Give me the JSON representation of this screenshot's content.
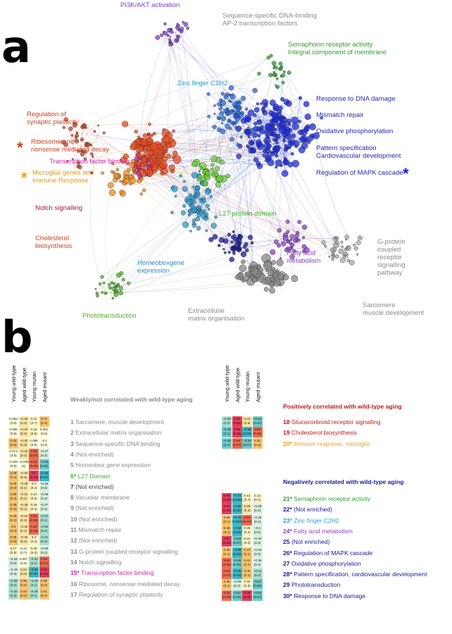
{
  "panel_a_letter": "a",
  "panel_b_letter": "b",
  "network_labels": [
    {
      "id": "pi3k",
      "text": "PI3K/AKT activation",
      "color": "#7b3fc4"
    },
    {
      "id": "ap2",
      "text": "Sequence-specific DNA-binding\nAP-2 transcription factors",
      "color": "#8a8a8a"
    },
    {
      "id": "sema",
      "text": "Semaphorin receptor activity\nIntegral component of membrane",
      "color": "#2e9d2e"
    },
    {
      "id": "znf",
      "text": "Zinc finger C2H2",
      "color": "#2a9ad0"
    },
    {
      "id": "dnadmg",
      "text": "Response to DNA damage",
      "color": "#2626b8"
    },
    {
      "id": "mismatch",
      "text": "Mismatch repair",
      "color": "#2626b8"
    },
    {
      "id": "oxphos",
      "text": "Oxidative phosphorylation",
      "color": "#2626b8"
    },
    {
      "id": "pattern",
      "text": "Pattern specification\nCardiovascular development",
      "color": "#2626b8"
    },
    {
      "id": "mapk",
      "text": "Regulation of MAPK cascade",
      "color": "#2626b8"
    },
    {
      "id": "synplast",
      "text": "Regulation of\nsynaptic plasticity",
      "color": "#c8401e"
    },
    {
      "id": "ribo",
      "text": "Ribosome and\nnonsense mediated decay",
      "color": "#c8401e"
    },
    {
      "id": "tfb",
      "text": "Transcription factor binding",
      "color": "#cc22aa"
    },
    {
      "id": "microglia",
      "text": "Microglial genes and\nImmune Response",
      "color": "#e09a10"
    },
    {
      "id": "notch",
      "text": "Notch signalling",
      "color": "#a0163a"
    },
    {
      "id": "l27",
      "text": "L27 protein domain",
      "color": "#3caf2a"
    },
    {
      "id": "chol",
      "text": "Cholesterol\nbiosynthesis",
      "color": "#c8401e"
    },
    {
      "id": "homeo",
      "text": "Homeoboxgene\nexpression",
      "color": "#2a88c8"
    },
    {
      "id": "fatty",
      "text": "Fatty acid\nmetabolism",
      "color": "#8a3fc4"
    },
    {
      "id": "gprot",
      "text": "G-protein\ncoupled\nreceptor\nsignalling\npathway",
      "color": "#8a8a8a"
    },
    {
      "id": "photo",
      "text": "Phototransduction",
      "color": "#4caf2a"
    },
    {
      "id": "ecm",
      "text": "Extracellular\nmatrix organisation",
      "color": "#8a8a8a"
    },
    {
      "id": "sarc",
      "text": "Sarcomere\nmuscle development",
      "color": "#8a8a8a"
    }
  ],
  "stars": [
    {
      "id": "red",
      "char": "*",
      "color": "#d2401e"
    },
    {
      "id": "orange",
      "char": "*",
      "color": "#e8a21a"
    },
    {
      "id": "blue",
      "char": "*",
      "color": "#1a1ad0"
    },
    {
      "id": "grey",
      "char": "*",
      "color": "#a0a0a0"
    }
  ],
  "column_headers": [
    "Young wild-type",
    "Aged wild-type",
    "Young mutan",
    "Aged mutant"
  ],
  "weak_section_title": "Weakly/not correlated with wild-type aging",
  "pos_section_title": "Positively correlated with wild-type aging",
  "neg_section_title": "Negatively correlated with wild-type aging",
  "weak_modules": [
    {
      "num": "1",
      "label": "Sarcomere, muscle development",
      "color": "#8a8a8a",
      "cells": [
        [
          "0.083",
          "(0.8)",
          "#ffffe0"
        ],
        [
          "−0.39",
          "(0.2)",
          "#fde6a4"
        ],
        [
          "0.12",
          "(0.7)",
          "#fff6c8"
        ],
        [
          "0.72",
          "(0.4)",
          "#f8c470"
        ]
      ]
    },
    {
      "num": "2",
      "label": "Extracellular matrix organisation",
      "color": "#8a8a8a",
      "cells": [
        [
          "0.065",
          "(0.8)",
          "#ffffe0"
        ],
        [
          "−0.34",
          "(0.3)",
          "#fde6a4"
        ],
        [
          "0.18",
          "(0.6)",
          "#fff6c8"
        ],
        [
          "0.061",
          "(0.9)",
          "#ffffe0"
        ]
      ]
    },
    {
      "num": "3",
      "label": "Sequence-specific DNA binding",
      "color": "#8a8a8a",
      "cells": [
        [
          "0.34",
          "(0.3)",
          "#f8c470"
        ],
        [
          "−0.32",
          "(0.3)",
          "#fde6a4"
        ],
        [
          "0.085",
          "(0.8)",
          "#ffffe0"
        ],
        [
          "−0.1",
          "(0.8)",
          "#ffffe0"
        ]
      ]
    },
    {
      "num": "4",
      "label": "(Not enriched)",
      "color": "#8a8a8a",
      "cells": [
        [
          "0.073",
          "(0.8)",
          "#ffffe0"
        ],
        [
          "−0.34",
          "(0.3)",
          "#fde6a4"
        ],
        [
          "0.59",
          "(0.07)",
          "#ef6a50"
        ],
        [
          "−0.27",
          "(0.4)",
          "#d8f0e0"
        ]
      ]
    },
    {
      "num": "5",
      "label": "Homeobox gene expression",
      "color": "#8a8a8a",
      "cells": [
        [
          "0.029",
          "(0.9)",
          "#ffffe0"
        ],
        [
          "−0.0089",
          "(1)",
          "#ffffe0"
        ],
        [
          "0.53",
          "(0.09)",
          "#ef6a50"
        ],
        [
          "−0.53",
          "(0.08)",
          "#6fcac8"
        ]
      ]
    },
    {
      "num": "6*",
      "label": "L27 Domain",
      "color": "#3caf2a",
      "cells": [
        [
          "0.29",
          "(0.4)",
          "#f8c470"
        ],
        [
          "−0.23",
          "(0.5)",
          "#fde6a4"
        ],
        [
          "0.6",
          "(0.04)",
          "#e83c5c"
        ],
        [
          "−0.66",
          "(0.02)",
          "#3ab8c8"
        ]
      ]
    },
    {
      "num": "7",
      "label": "(Not enriched)",
      "color": "#444444",
      "cells": [
        [
          "0.26",
          "(0.4)",
          "#f8c470"
        ],
        [
          "−0.48",
          "(0.1)",
          "#fde6a4"
        ],
        [
          "0.4",
          "(0.2)",
          "#fff6c8"
        ],
        [
          "−0.16",
          "(0.6)",
          "#d8f0e0"
        ]
      ]
    },
    {
      "num": "8",
      "label": "Vacuolar membrane",
      "color": "#8a8a8a",
      "cells": [
        [
          "0.35",
          "(0.3)",
          "#f8c470"
        ],
        [
          "−0.41",
          "(0.2)",
          "#fde6a4"
        ],
        [
          "0.21",
          "(0.5)",
          "#fff6c8"
        ],
        [
          "−0.25",
          "(0.4)",
          "#d8f0e0"
        ]
      ]
    },
    {
      "num": "9",
      "label": "(Not enriched)",
      "color": "#8a8a8a",
      "cells": [
        [
          "0.36",
          "(0.3)",
          "#f8c470"
        ],
        [
          "−0.48",
          "(0.1)",
          "#fde6a4"
        ],
        [
          "0.26",
          "(0.4)",
          "#fff6c8"
        ],
        [
          "−0.27",
          "(0.4)",
          "#d8f0e0"
        ]
      ]
    },
    {
      "num": "10",
      "label": "(Not enriched)",
      "color": "#8a8a8a",
      "cells": [
        [
          "0.29",
          "(0.4)",
          "#f8c470"
        ],
        [
          "−0.34",
          "(0.3)",
          "#fde6a4"
        ],
        [
          "0.53",
          "(0.08)",
          "#ef6a50"
        ],
        [
          "−0.47",
          "(0.1)",
          "#a8e0d0"
        ]
      ]
    },
    {
      "num": "11",
      "label": "Mismatch repair",
      "color": "#8a8a8a",
      "cells": [
        [
          "0.3",
          "(0.3)",
          "#f8c470"
        ],
        [
          "−0.45",
          "(0.1)",
          "#fde6a4"
        ],
        [
          "0.52",
          "(0.09)",
          "#ef6a50"
        ],
        [
          "−0.42",
          "(0.2)",
          "#a8e0d0"
        ]
      ]
    },
    {
      "num": "12",
      "label": "(Not enriched)",
      "color": "#8a8a8a",
      "cells": [
        [
          "0.35",
          "(0.3)",
          "#f8c470"
        ],
        [
          "−0.48",
          "(0.2)",
          "#fde6a4"
        ],
        [
          "0.4",
          "(0.2)",
          "#fff6c8"
        ],
        [
          "−0.41",
          "(0.2)",
          "#a8e0d0"
        ]
      ]
    },
    {
      "num": "13",
      "label": "G-protein coupled receptor signalling",
      "color": "#8a8a8a",
      "cells": [
        [
          "0.17",
          "(0.6)",
          "#fff6c8"
        ],
        [
          "0.13",
          "(0.7)",
          "#ffffe0"
        ],
        [
          "0.26",
          "(0.4)",
          "#fff6c8"
        ],
        [
          "−0.25",
          "(0.4)",
          "#d8f0e0"
        ]
      ]
    },
    {
      "num": "14",
      "label": "Notch signalling",
      "color": "#8a8a8a",
      "cells": [
        [
          "−0.16",
          "(0.6)",
          "#d8f0e0"
        ],
        [
          "0.067",
          "(0.8)",
          "#ffffe0"
        ],
        [
          "−0.44",
          "(0.1)",
          "#a8e0d0"
        ],
        [
          "0.54",
          "(0.07)",
          "#ef6a50"
        ]
      ]
    },
    {
      "num": "15*",
      "label": "Transcription factor binding",
      "color": "#cc22aa",
      "cells": [
        [
          "−0.19",
          "(0.6)",
          "#d8f0e0"
        ],
        [
          "0.24",
          "(0.5)",
          "#fde6a4"
        ],
        [
          "−0.65",
          "(0.02)",
          "#3ab8c8"
        ],
        [
          "0.58",
          "(0.05)",
          "#e83c5c"
        ]
      ]
    },
    {
      "num": "16",
      "label": "Ribosome, nonsense mediated decay",
      "color": "#8a8a8a",
      "cells": [
        [
          "−0.39",
          "(0.2)",
          "#a8e0d0"
        ],
        [
          "0.39",
          "(0.2)",
          "#f8c470"
        ],
        [
          "−0.49",
          "(0.1)",
          "#a8e0d0"
        ],
        [
          "0.36",
          "(0.3)",
          "#f8c470"
        ]
      ]
    },
    {
      "num": "17",
      "label": "Regulation of synaptic plasticity",
      "color": "#8a8a8a",
      "cells": [
        [
          "−0.33",
          "(0.3)",
          "#a8e0d0"
        ],
        [
          "0.44",
          "(0.2)",
          "#f8c470"
        ],
        [
          "−0.48",
          "(0.1)",
          "#a8e0d0"
        ],
        [
          "0.41",
          "(0.2)",
          "#f8c470"
        ]
      ]
    }
  ],
  "pos_modules": [
    {
      "num": "18",
      "label": "Glucocorticoid receptor signalling",
      "color": "#c01818",
      "cells": [
        [
          "−0.36",
          "(0.3)",
          "#a8e0d0"
        ],
        [
          "0.61",
          "(0.05)",
          "#e83c5c"
        ],
        [
          "0.23",
          "(0.5)",
          "#fde6a4"
        ],
        [
          "−0.54",
          "(0.07)",
          "#6fcac8"
        ]
      ]
    },
    {
      "num": "19",
      "label": "Cholesterol biosynthesis",
      "color": "#c01818",
      "cells": [
        [
          "−0.49",
          "(0.1)",
          "#6fcac8"
        ],
        [
          "0.58",
          "(0.05)",
          "#e83c5c"
        ],
        [
          "−0.65",
          "(0.02)",
          "#3ab8c8"
        ],
        [
          "0.53",
          "(0.09)",
          "#ef6a50"
        ]
      ]
    },
    {
      "num": "20*",
      "label": "Immune response, microglia",
      "color": "#e8a21a",
      "cells": [
        [
          "−0.45",
          "(0.1)",
          "#6fcac8"
        ],
        [
          "0.54",
          "(0.07)",
          "#ef6a50"
        ],
        [
          "−0.54",
          "(0.07)",
          "#6fcac8"
        ],
        [
          "0.31",
          "(0.3)",
          "#f8c470"
        ]
      ]
    }
  ],
  "neg_modules": [
    {
      "num": "21*",
      "label": "Semaphorin receptor activity",
      "color": "#2e9d2e",
      "cells": [
        [
          "0.66",
          "(0.06)",
          "#e83c5c"
        ],
        [
          "−0.74",
          "(0.006)",
          "#3ab8c8"
        ],
        [
          "0.13",
          "(0.7)",
          "#fff6c8"
        ],
        [
          "0.12",
          "(0.7)",
          "#fff6c8"
        ]
      ]
    },
    {
      "num": "22*",
      "label": "(Not enriched)",
      "color": "#1a1a9c",
      "cells": [
        [
          "0.56",
          "(0.06)",
          "#e83c5c"
        ],
        [
          "−0.68",
          "(0.01)",
          "#3ab8c8"
        ],
        [
          "0.25",
          "(0.4)",
          "#fde6a4"
        ],
        [
          "−0.25",
          "(0.4)",
          "#d8f0e0"
        ]
      ]
    },
    {
      "num": "23*",
      "label": "Zinc finger C2H2",
      "color": "#2a9ad0",
      "cells": [
        [
          "0.46",
          "(0.1)",
          "#f8c470"
        ],
        [
          "−0.76",
          "(0.004)",
          "#3ab8c8"
        ],
        [
          "0.54",
          "(0.07)",
          "#ef6a50"
        ],
        [
          "−0.25",
          "(0.4)",
          "#d8f0e0"
        ]
      ]
    },
    {
      "num": "24*",
      "label": "Fatty acid metabolism",
      "color": "#8a3fc4",
      "cells": [
        [
          "0.48",
          "(0.1)",
          "#f8c470"
        ],
        [
          "−0.62",
          "(0.03)",
          "#3ab8c8"
        ],
        [
          "0.36",
          "(0.2)",
          "#fff6c8"
        ],
        [
          "−0.2",
          "(0.5)",
          "#d8f0e0"
        ]
      ]
    },
    {
      "num": "25",
      "label": "(Not enriched)",
      "color": "#1a1a9c",
      "cells": [
        [
          "0.57",
          "(0.05)",
          "#e83c5c"
        ],
        [
          "−0.54",
          "(0.07)",
          "#6fcac8"
        ],
        [
          "0.31",
          "(0.3)",
          "#fff6c8"
        ],
        [
          "−0.34",
          "(0.3)",
          "#d8f0e0"
        ]
      ]
    },
    {
      "num": "26*",
      "label": "Regulation of MAPK cascade",
      "color": "#1a1a9c",
      "cells": [
        [
          "0.45",
          "(0.1)",
          "#f8c470"
        ],
        [
          "−0.59",
          "(0.04)",
          "#3ab8c8"
        ],
        [
          "0.47",
          "(0.1)",
          "#f8c470"
        ],
        [
          "−0.34",
          "(0.3)",
          "#d8f0e0"
        ]
      ]
    },
    {
      "num": "27",
      "label": "Oxidative phosphorylation",
      "color": "#1a1a9c",
      "cells": [
        [
          "0.52",
          "(0.08)",
          "#ef6a50"
        ],
        [
          "−0.55",
          "(0.06)",
          "#6fcac8"
        ],
        [
          "0.41",
          "(0.2)",
          "#f8c470"
        ],
        [
          "−0.36",
          "(0.2)",
          "#d8f0e0"
        ]
      ]
    },
    {
      "num": "28*",
      "label": "Pattern specification, cardiovascular development",
      "color": "#1a1a9c",
      "cells": [
        [
          "0.54",
          "(0.07)",
          "#ef6a50"
        ],
        [
          "−0.59",
          "(0.04)",
          "#3ab8c8"
        ],
        [
          "0.45",
          "(0.1)",
          "#f8c470"
        ],
        [
          "−0.41",
          "(0.2)",
          "#a8e0d0"
        ]
      ]
    },
    {
      "num": "29",
      "label": "Phototransduction",
      "color": "#1a1a9c",
      "cells": [
        [
          "0.46",
          "(0.1)",
          "#f8c470"
        ],
        [
          "−0.29",
          "(0.4)",
          "#d8f0e0"
        ],
        [
          "0.32",
          "(0.3)",
          "#fff6c8"
        ],
        [
          "−0.57",
          "(0.06)",
          "#6fcac8"
        ]
      ]
    },
    {
      "num": "30*",
      "label": "Response to DNA damage",
      "color": "#1a1a9c",
      "cells": [
        [
          "0.52",
          "(0.09)",
          "#ef6a50"
        ],
        [
          "−0.57",
          "(0.05)",
          "#6fcac8"
        ],
        [
          "0.58",
          "(0.05)",
          "#e83c5c"
        ],
        [
          "−0.54",
          "(0.07)",
          "#6fcac8"
        ]
      ]
    }
  ]
}
